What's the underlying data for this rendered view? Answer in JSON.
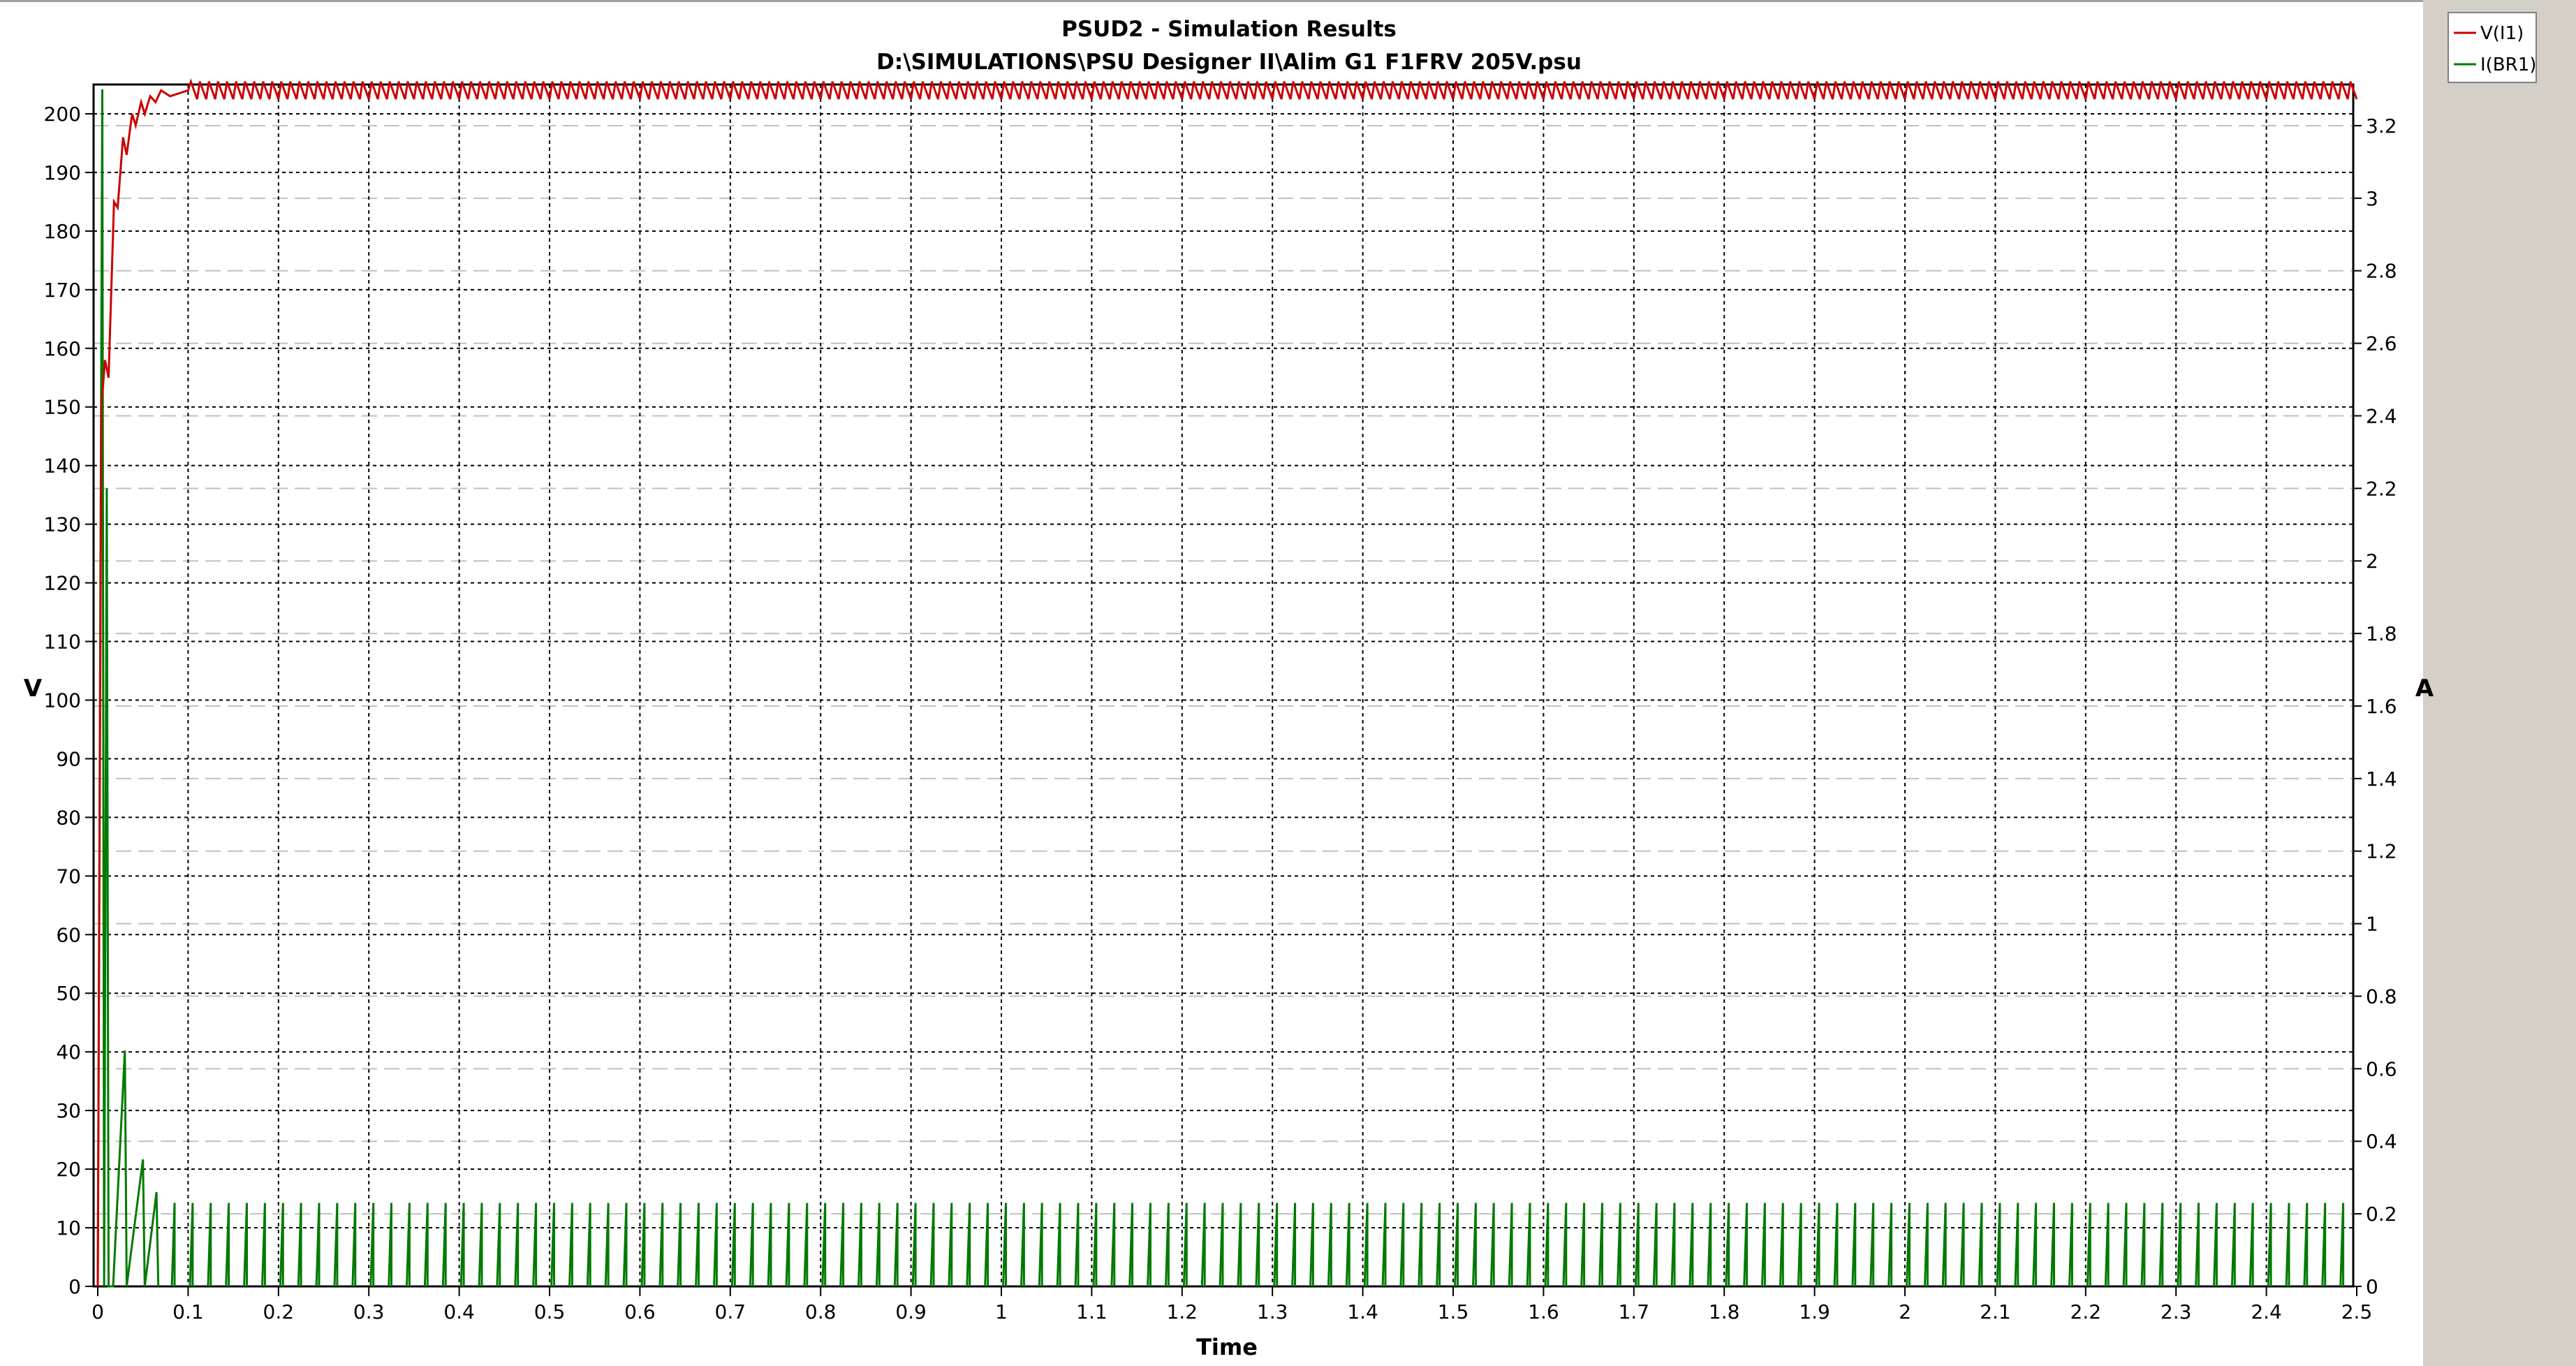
{
  "window": {
    "right_panel_color": "#d4d0c8"
  },
  "chart_data": {
    "type": "line",
    "title": "PSUD2 - Simulation Results",
    "subtitle": "D:\\SIMULATIONS\\PSU Designer II\\Alim G1 F1FRV 205V.psu",
    "xlabel": "Time",
    "ylabel_left": "V",
    "ylabel_right": "A",
    "xlim": [
      0,
      2.5
    ],
    "ylim_left": [
      0,
      205
    ],
    "ylim_right": [
      0,
      3.3
    ],
    "x_ticks": [
      "0",
      "0.1",
      "0.2",
      "0.3",
      "0.4",
      "0.5",
      "0.6",
      "0.7",
      "0.8",
      "0.9",
      "1",
      "1.1",
      "1.2",
      "1.3",
      "1.4",
      "1.5",
      "1.6",
      "1.7",
      "1.8",
      "1.9",
      "2",
      "2.1",
      "2.2",
      "2.3",
      "2.4",
      "2.5"
    ],
    "y_left_ticks": [
      "0",
      "10",
      "20",
      "30",
      "40",
      "50",
      "60",
      "70",
      "80",
      "90",
      "100",
      "110",
      "120",
      "130",
      "140",
      "150",
      "160",
      "170",
      "180",
      "190",
      "200"
    ],
    "y_right_ticks": [
      "0",
      "0.2",
      "0.4",
      "0.6",
      "0.8",
      "1",
      "1.2",
      "1.4",
      "1.6",
      "1.8",
      "2",
      "2.2",
      "2.4",
      "2.6",
      "2.8",
      "3",
      "3.2"
    ],
    "grid": true,
    "legend_placement": "top-right",
    "series": [
      {
        "name": "V(I1)",
        "axis": "left",
        "color": "#cc0000",
        "x": [
          0,
          0.004,
          0.008,
          0.012,
          0.018,
          0.022,
          0.028,
          0.032,
          0.038,
          0.042,
          0.048,
          0.052,
          0.058,
          0.064,
          0.07,
          0.08,
          0.1,
          2.5
        ],
        "y": [
          0,
          150,
          158,
          155,
          185,
          184,
          196,
          193,
          200,
          198,
          202,
          200,
          203,
          202,
          204,
          203,
          204,
          204
        ],
        "steady_ripple": {
          "center": 204,
          "amplitude": 1.5,
          "period": 0.01
        }
      },
      {
        "name": "I(BR1)",
        "axis": "right",
        "color": "#007a00",
        "x": [
          0,
          0.005,
          0.01,
          0.015,
          0.03,
          0.05,
          0.065
        ],
        "y": [
          0,
          3.3,
          2.2,
          0,
          0.65,
          0.35,
          0.26
        ],
        "steady_pulses": {
          "peak": 0.23,
          "period": 0.02
        }
      }
    ]
  }
}
